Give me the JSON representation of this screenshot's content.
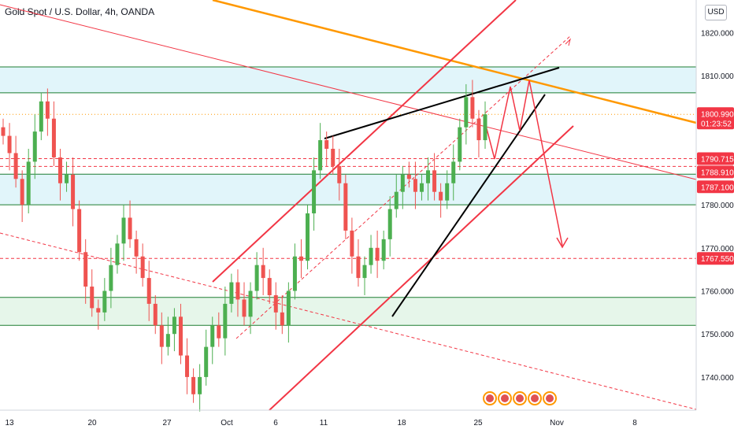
{
  "title": "Gold Spot / U.S. Dollar, 4h, OANDA",
  "currency_button": "USD",
  "chart_data": {
    "type": "candlestick",
    "symbol": "Gold Spot / U.S. Dollar",
    "timeframe": "4h",
    "source": "OANDA",
    "ylim": [
      1733,
      1829
    ],
    "y_ticks": [
      1740,
      1750,
      1760,
      1770,
      1780,
      1790,
      1800,
      1810,
      1820
    ],
    "y_tick_labels": [
      "1740.000",
      "1750.000",
      "1760.000",
      "1770.000",
      "1780.000",
      "1790.000",
      "1800.000",
      "1810.000",
      "1820.000"
    ],
    "x_ticks": [
      "13",
      "20",
      "27",
      "Oct",
      "6",
      "11",
      "18",
      "25",
      "Nov",
      "8"
    ],
    "price_tags": [
      {
        "label": "1800.990",
        "sublabel": "01:23:52",
        "value": 1800.99,
        "color": "#f23645"
      },
      {
        "label": "1790.715",
        "value": 1790.715,
        "color": "#f23645"
      },
      {
        "label": "1788.910",
        "value": 1788.91,
        "color": "#f23645"
      },
      {
        "label": "1787.100",
        "value": 1787.1,
        "color": "#f23645"
      },
      {
        "label": "1767.550",
        "value": 1767.55,
        "color": "#f23645"
      }
    ],
    "zones": [
      {
        "from": 1806,
        "to": 1812,
        "color": "#e1f5fa"
      },
      {
        "from": 1780,
        "to": 1787.1,
        "color": "#e1f5fa"
      },
      {
        "from": 1752,
        "to": 1758.5,
        "color": "#e6f6ea"
      }
    ],
    "horizontal_lines": [
      {
        "value": 1812,
        "style": "solid",
        "color": "#1e7d32"
      },
      {
        "value": 1806,
        "style": "solid",
        "color": "#1e7d32"
      },
      {
        "value": 1787.1,
        "style": "solid",
        "color": "#1e7d32"
      },
      {
        "value": 1780,
        "style": "solid",
        "color": "#1e7d32"
      },
      {
        "value": 1758.5,
        "style": "solid",
        "color": "#1e7d32"
      },
      {
        "value": 1752,
        "style": "solid",
        "color": "#1e7d32"
      },
      {
        "value": 1790.715,
        "style": "dashed",
        "color": "#f23645"
      },
      {
        "value": 1788.91,
        "style": "dashed",
        "color": "#f23645"
      },
      {
        "value": 1767.55,
        "style": "dashed",
        "color": "#f23645"
      },
      {
        "value": 1800.99,
        "style": "dotted",
        "color": "#ff9800"
      }
    ],
    "colors": {
      "up": "#4caf50",
      "down": "#ef5350",
      "channel": "#f23645",
      "trendline": "#ff9800",
      "wedge": "#000000"
    },
    "candles_close": [
      1796,
      1792,
      1786,
      1780,
      1790,
      1797,
      1804,
      1800,
      1791,
      1785,
      1787,
      1779,
      1769,
      1761,
      1756,
      1755,
      1760,
      1766,
      1771,
      1777,
      1772,
      1768,
      1763,
      1757,
      1752,
      1747,
      1750,
      1754,
      1745,
      1740,
      1736,
      1740,
      1747,
      1752,
      1749,
      1757,
      1762,
      1758,
      1754,
      1760,
      1766,
      1763,
      1759,
      1755,
      1752,
      1760,
      1768,
      1767,
      1778,
      1788,
      1795,
      1793,
      1789,
      1785,
      1774,
      1768,
      1763,
      1766,
      1770,
      1767,
      1772,
      1779,
      1783,
      1787,
      1786,
      1783,
      1785,
      1788,
      1783,
      1781,
      1785,
      1790,
      1798,
      1805,
      1800,
      1795,
      1801
    ]
  }
}
